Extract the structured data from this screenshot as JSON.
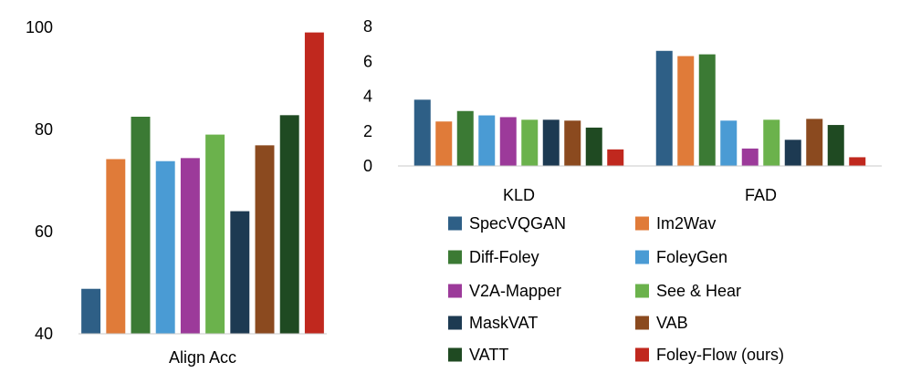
{
  "chart_data": [
    {
      "type": "bar",
      "categories": [
        "Align Acc"
      ],
      "ylim": [
        40,
        100
      ],
      "yticks": [
        40,
        60,
        80,
        100
      ],
      "grid": false,
      "series": [
        {
          "name": "SpecVQGAN",
          "values": [
            48.8
          ],
          "color": "#2e5f86"
        },
        {
          "name": "Im2Wav",
          "values": [
            74.2
          ],
          "color": "#e07b39"
        },
        {
          "name": "Diff-Foley",
          "values": [
            82.5
          ],
          "color": "#3b7a34"
        },
        {
          "name": "FoleyGen",
          "values": [
            73.8
          ],
          "color": "#4a9bd4"
        },
        {
          "name": "V2A-Mapper",
          "values": [
            74.4
          ],
          "color": "#9c3a9a"
        },
        {
          "name": "See & Hear",
          "values": [
            79.0
          ],
          "color": "#6bb24c"
        },
        {
          "name": "MaskVAT",
          "values": [
            64.0
          ],
          "color": "#1d3a52"
        },
        {
          "name": "VAB",
          "values": [
            76.9
          ],
          "color": "#8b4a1f"
        },
        {
          "name": "VATT",
          "values": [
            82.8
          ],
          "color": "#1f4a22"
        },
        {
          "name": "Foley-Flow (ours)",
          "values": [
            99.0
          ],
          "color": "#c0281e"
        }
      ]
    },
    {
      "type": "bar",
      "categories": [
        "KLD",
        "FAD"
      ],
      "ylim": [
        0,
        8
      ],
      "yticks": [
        0,
        2,
        4,
        6,
        8
      ],
      "grid": false,
      "legend": "bottom",
      "series": [
        {
          "name": "SpecVQGAN",
          "values": [
            3.8,
            6.6
          ],
          "color": "#2e5f86"
        },
        {
          "name": "Im2Wav",
          "values": [
            2.55,
            6.3
          ],
          "color": "#e07b39"
        },
        {
          "name": "Diff-Foley",
          "values": [
            3.15,
            6.4
          ],
          "color": "#3b7a34"
        },
        {
          "name": "FoleyGen",
          "values": [
            2.9,
            2.6
          ],
          "color": "#4a9bd4"
        },
        {
          "name": "V2A-Mapper",
          "values": [
            2.8,
            1.0
          ],
          "color": "#9c3a9a"
        },
        {
          "name": "See & Hear",
          "values": [
            2.65,
            2.65
          ],
          "color": "#6bb24c"
        },
        {
          "name": "MaskVAT",
          "values": [
            2.65,
            1.5
          ],
          "color": "#1d3a52"
        },
        {
          "name": "VAB",
          "values": [
            2.6,
            2.7
          ],
          "color": "#8b4a1f"
        },
        {
          "name": "VATT",
          "values": [
            2.2,
            2.35
          ],
          "color": "#1f4a22"
        },
        {
          "name": "Foley-Flow (ours)",
          "values": [
            0.95,
            0.5
          ],
          "color": "#c0281e"
        }
      ]
    }
  ]
}
